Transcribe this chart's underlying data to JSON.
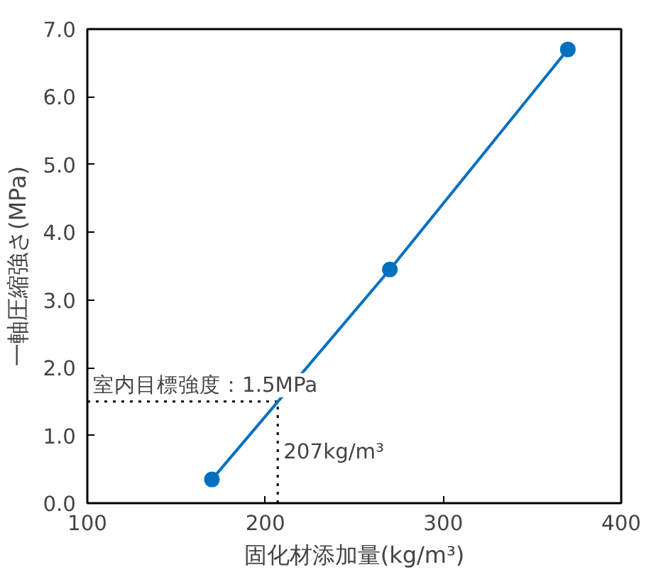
{
  "chart_data": {
    "type": "line",
    "x": [
      170,
      270,
      370
    ],
    "series": [
      {
        "color": "#0070c0",
        "values": [
          0.35,
          3.45,
          6.7
        ]
      }
    ],
    "marker": "circle",
    "xlabel": "固化材添加量(kg/m³)",
    "ylabel": "一軸圧縮強さ(MPa)",
    "xlim": [
      100,
      400
    ],
    "xticks": [
      100,
      200,
      300,
      400
    ],
    "ylim": [
      0,
      7
    ],
    "yticks": [
      {
        "value": 0,
        "label": "0.0"
      },
      {
        "value": 1,
        "label": "1.0"
      },
      {
        "value": 2,
        "label": "2.0"
      },
      {
        "value": 3,
        "label": "3.0"
      },
      {
        "value": 4,
        "label": "4.0"
      },
      {
        "value": 5,
        "label": "5.0"
      },
      {
        "value": 6,
        "label": "6.0"
      },
      {
        "value": 7,
        "label": "7.0"
      }
    ],
    "ref_lines": [
      {
        "axis": "y",
        "value": 1.5,
        "label": "室内目標強度：1.5MPa",
        "line_style": "dotted",
        "color": "#000000"
      },
      {
        "axis": "x",
        "value": 207,
        "label": "207kg/m³",
        "line_style": "dotted",
        "color": "#000000"
      }
    ],
    "grid": false
  }
}
